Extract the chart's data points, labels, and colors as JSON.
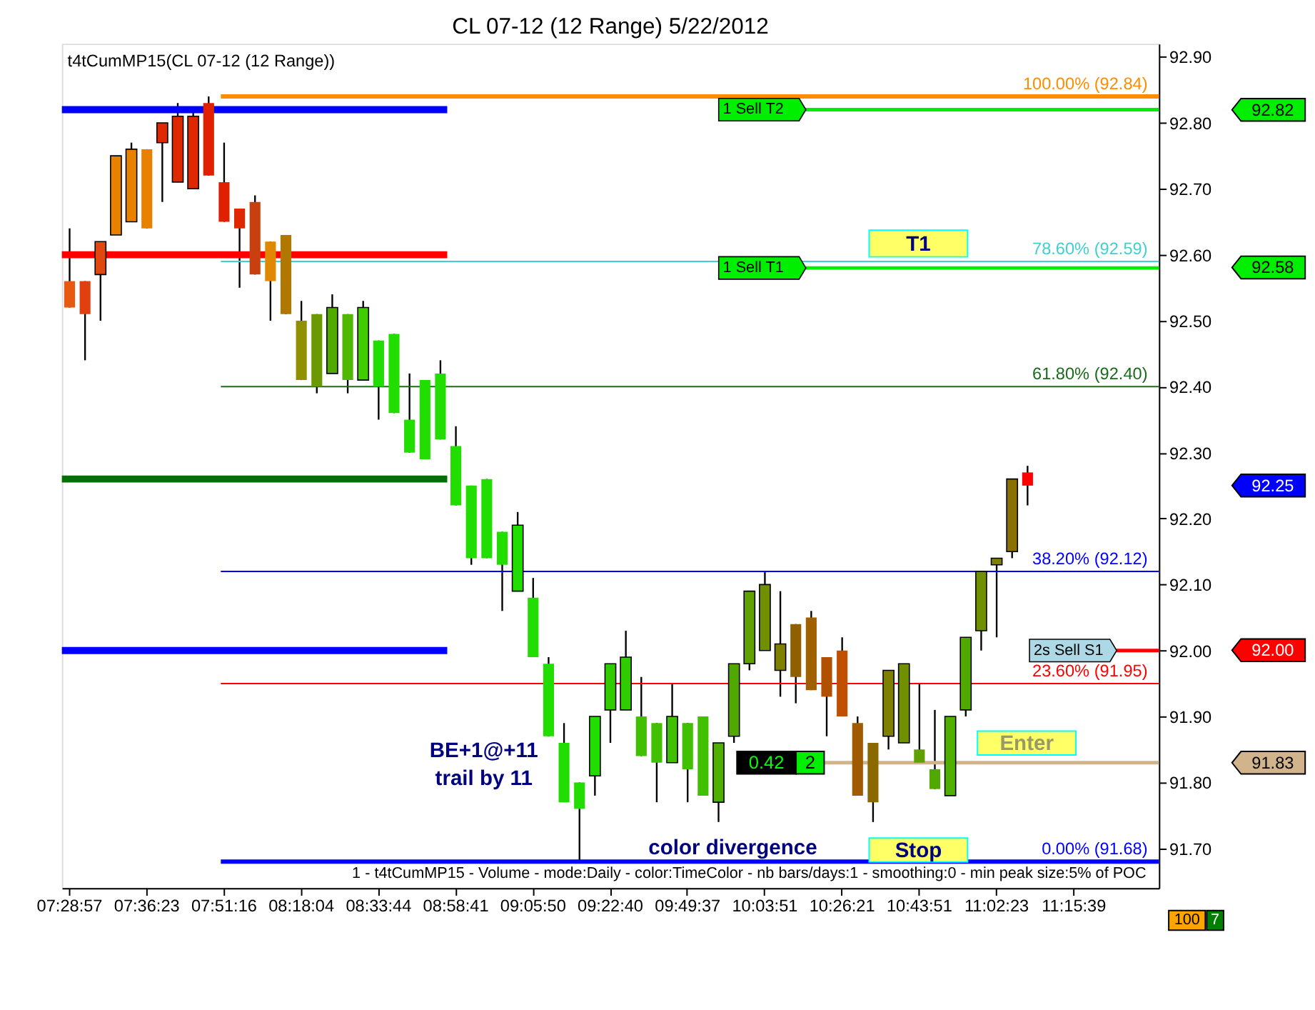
{
  "chart_data": {
    "type": "candlestick",
    "title": "CL 07-12 (12 Range)  5/22/2012",
    "categories": [
      "07:28:57",
      null,
      null,
      null,
      null,
      "07:36:23",
      null,
      null,
      null,
      null,
      "07:51:16",
      null,
      null,
      null,
      null,
      "08:18:04",
      null,
      null,
      null,
      null,
      "08:33:44",
      null,
      null,
      null,
      null,
      "08:58:41",
      null,
      null,
      null,
      null,
      "09:05:50",
      null,
      null,
      null,
      null,
      "09:22:40",
      null,
      null,
      null,
      null,
      "09:49:37",
      null,
      null,
      null,
      null,
      "10:03:51",
      null,
      null,
      null,
      null,
      "10:26:21",
      null,
      null,
      null,
      null,
      "10:43:51",
      null,
      null,
      null,
      null,
      "11:02:23",
      null,
      null,
      null,
      null,
      "11:15:39",
      null,
      null,
      null,
      null,
      null
    ],
    "ohlc": [
      [
        92.56,
        92.64,
        92.52,
        92.52
      ],
      [
        92.56,
        92.56,
        92.44,
        92.51
      ],
      [
        92.57,
        92.62,
        92.5,
        92.62
      ],
      [
        92.63,
        92.75,
        92.63,
        92.75
      ],
      [
        92.65,
        92.77,
        92.65,
        92.76
      ],
      [
        92.76,
        92.76,
        92.64,
        92.64
      ],
      [
        92.77,
        92.8,
        92.68,
        92.8
      ],
      [
        92.71,
        92.83,
        92.71,
        92.81
      ],
      [
        92.7,
        92.82,
        92.7,
        92.81
      ],
      [
        92.83,
        92.84,
        92.72,
        92.72
      ],
      [
        92.71,
        92.77,
        92.65,
        92.65
      ],
      [
        92.67,
        92.67,
        92.55,
        92.64
      ],
      [
        92.68,
        92.69,
        92.57,
        92.57
      ],
      [
        92.62,
        92.62,
        92.5,
        92.56
      ],
      [
        92.63,
        92.63,
        92.51,
        92.51
      ],
      [
        92.5,
        92.53,
        92.41,
        92.41
      ],
      [
        92.51,
        92.51,
        92.39,
        92.4
      ],
      [
        92.42,
        92.54,
        92.42,
        92.52
      ],
      [
        92.51,
        92.51,
        92.39,
        92.41
      ],
      [
        92.41,
        92.53,
        92.41,
        92.52
      ],
      [
        92.47,
        92.47,
        92.35,
        92.4
      ],
      [
        92.48,
        92.48,
        92.36,
        92.36
      ],
      [
        92.35,
        92.42,
        92.3,
        92.3
      ],
      [
        92.41,
        92.41,
        92.29,
        92.29
      ],
      [
        92.42,
        92.44,
        92.32,
        92.32
      ],
      [
        92.31,
        92.34,
        92.22,
        92.22
      ],
      [
        92.25,
        92.25,
        92.13,
        92.14
      ],
      [
        92.26,
        92.26,
        92.14,
        92.14
      ],
      [
        92.18,
        92.18,
        92.06,
        92.13
      ],
      [
        92.09,
        92.21,
        92.09,
        92.19
      ],
      [
        92.08,
        92.11,
        91.99,
        91.99
      ],
      [
        91.98,
        91.99,
        91.87,
        91.87
      ],
      [
        91.86,
        91.89,
        91.77,
        91.77
      ],
      [
        91.8,
        91.8,
        91.68,
        91.76
      ],
      [
        91.81,
        91.9,
        91.78,
        91.9
      ],
      [
        91.91,
        91.98,
        91.86,
        91.98
      ],
      [
        91.91,
        92.03,
        91.91,
        91.99
      ],
      [
        91.9,
        91.96,
        91.84,
        91.84
      ],
      [
        91.89,
        91.89,
        91.77,
        91.83
      ],
      [
        91.83,
        91.95,
        91.83,
        91.9
      ],
      [
        91.89,
        91.89,
        91.77,
        91.82
      ],
      [
        91.9,
        91.9,
        91.78,
        91.78
      ],
      [
        91.77,
        91.86,
        91.74,
        91.86
      ],
      [
        91.87,
        91.98,
        91.86,
        91.98
      ],
      [
        91.98,
        92.09,
        91.97,
        92.09
      ],
      [
        92.0,
        92.12,
        92.0,
        92.1
      ],
      [
        91.97,
        92.09,
        91.93,
        92.01
      ],
      [
        92.04,
        92.04,
        91.92,
        91.96
      ],
      [
        92.05,
        92.06,
        91.94,
        91.94
      ],
      [
        91.99,
        91.99,
        91.87,
        91.93
      ],
      [
        92.0,
        92.02,
        91.9,
        91.9
      ],
      [
        91.89,
        91.9,
        91.78,
        91.78
      ],
      [
        91.86,
        91.86,
        91.74,
        91.77
      ],
      [
        91.87,
        91.97,
        91.85,
        91.97
      ],
      [
        91.86,
        91.98,
        91.86,
        91.98
      ],
      [
        91.85,
        91.95,
        91.83,
        91.83
      ],
      [
        91.82,
        91.91,
        91.79,
        91.79
      ],
      [
        91.78,
        91.9,
        91.78,
        91.9
      ],
      [
        91.91,
        92.02,
        91.9,
        92.02
      ],
      [
        92.03,
        92.12,
        92.0,
        92.12
      ],
      [
        92.13,
        92.14,
        92.02,
        92.14
      ],
      [
        92.15,
        92.26,
        92.14,
        92.26
      ],
      [
        92.27,
        92.28,
        92.22,
        92.25
      ],
      null,
      null,
      null,
      null,
      null,
      null,
      null,
      null
    ],
    "colors": [
      "#e85a10",
      "#e04010",
      "#e04810",
      "#e88000",
      "#e88000",
      "#e88000",
      "#e02800",
      "#e02800",
      "#e02800",
      "#e02000",
      "#e02000",
      "#e02800",
      "#c84010",
      "#e08800",
      "#b07800",
      "#909000",
      "#6a9a00",
      "#50aa00",
      "#50b800",
      "#40cc00",
      "#22dd00",
      "#22dd00",
      "#22dd00",
      "#22dd00",
      "#22dd00",
      "#22dd00",
      "#22dd00",
      "#22dd00",
      "#22dd00",
      "#22dd00",
      "#22dd00",
      "#22dd00",
      "#22dd00",
      "#22dd00",
      "#22dd00",
      "#30cc00",
      "#30cc00",
      "#40c000",
      "#40c000",
      "#40c000",
      "#40c000",
      "#40c000",
      "#50b000",
      "#50a800",
      "#60a000",
      "#709000",
      "#808000",
      "#906000",
      "#a06000",
      "#b05000",
      "#c05000",
      "#a05a00",
      "#8a6a00",
      "#808000",
      "#709000",
      "#60a000",
      "#50a800",
      "#50b000",
      "#50a800",
      "#709000",
      "#808000",
      "#8a7000",
      "#ff0000",
      null,
      null,
      null,
      null,
      null,
      null,
      null,
      null
    ],
    "ylim": [
      91.64,
      92.92
    ],
    "yticks": [
      {
        "value": 91.7,
        "label": "91.70"
      },
      {
        "value": 91.8,
        "label": "91.80"
      },
      {
        "value": 91.9,
        "label": "91.90"
      },
      {
        "value": 92.0,
        "label": "92.00"
      },
      {
        "value": 92.1,
        "label": "92.10"
      },
      {
        "value": 92.2,
        "label": "92.20"
      },
      {
        "value": 92.3,
        "label": "92.30"
      },
      {
        "value": 92.4,
        "label": "92.40"
      },
      {
        "value": 92.5,
        "label": "92.50"
      },
      {
        "value": 92.6,
        "label": "92.60"
      },
      {
        "value": 92.7,
        "label": "92.70"
      },
      {
        "value": 92.8,
        "label": "92.80"
      },
      {
        "value": 92.9,
        "label": "92.90"
      }
    ],
    "ref_lines": [
      {
        "axis": "y",
        "value": 92.84,
        "label": "100.00% (92.84)",
        "color": "#ff8c00"
      },
      {
        "axis": "y",
        "value": 92.82,
        "color": "#0000ff"
      },
      {
        "axis": "y",
        "value": 92.82,
        "label": "1 Sell T2",
        "color": "#00ee00"
      },
      {
        "axis": "y",
        "value": 92.6,
        "color": "#ff0000"
      },
      {
        "axis": "y",
        "value": 92.59,
        "label": "78.60% (92.59)",
        "color": "#40d0d0"
      },
      {
        "axis": "y",
        "value": 92.58,
        "label": "1 Sell T1",
        "color": "#00ee00"
      },
      {
        "axis": "y",
        "value": 92.4,
        "label": "61.80% (92.40)",
        "color": "#1a6b1a"
      },
      {
        "axis": "y",
        "value": 92.26,
        "color": "#007000"
      },
      {
        "axis": "y",
        "value": 92.12,
        "label": "38.20% (92.12)",
        "color": "#0000ff"
      },
      {
        "axis": "y",
        "value": 92.0,
        "color": "#0000ff"
      },
      {
        "axis": "y",
        "value": 92.0,
        "label": "2s Sell S1",
        "color": "#ff0000"
      },
      {
        "axis": "y",
        "value": 91.95,
        "label": "23.60% (91.95)",
        "color": "#ff0000"
      },
      {
        "axis": "y",
        "value": 91.83,
        "color": "#d2b48c"
      },
      {
        "axis": "y",
        "value": 91.68,
        "label": "0.00% (91.68)",
        "color": "#0000ff"
      }
    ],
    "annotations": [
      "t4tCumMP15(CL 07-12 (12 Range))",
      "BE+1@+11",
      "trail by 11",
      "color divergence",
      "Stop",
      "Enter",
      "T1",
      "0.42",
      "2",
      "1 - t4tCumMP15 - Volume - mode:Daily - color:TimeColor - nb bars/days:1 - smoothing:0 - min peak size:5% of POC",
      "100",
      "7",
      "92.82",
      "92.58",
      "92.25",
      "92.00",
      "91.83"
    ]
  }
}
